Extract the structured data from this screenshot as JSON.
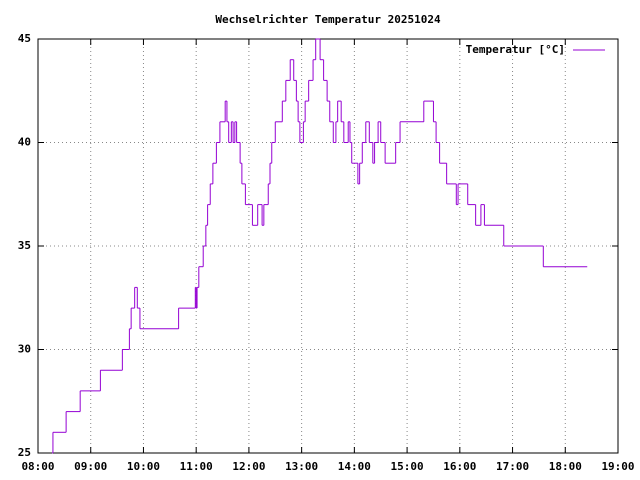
{
  "chart_data": {
    "type": "line",
    "title": "Wechselrichter Temperatur 20251024",
    "x": [
      "08:16",
      "08:17",
      "08:32",
      "08:48",
      "09:11",
      "09:36",
      "09:44",
      "09:46",
      "09:50",
      "09:53",
      "09:56",
      "10:40",
      "10:59",
      "11:00",
      "11:01",
      "11:03",
      "11:08",
      "11:11",
      "11:13",
      "11:16",
      "11:19",
      "11:23",
      "11:27",
      "11:33",
      "11:35",
      "11:37",
      "11:40",
      "11:42",
      "11:44",
      "11:46",
      "11:50",
      "11:52",
      "11:56",
      "12:04",
      "12:10",
      "12:15",
      "12:17",
      "12:22",
      "12:24",
      "12:26",
      "12:30",
      "12:38",
      "12:42",
      "12:47",
      "12:51",
      "12:54",
      "12:56",
      "12:58",
      "13:02",
      "13:04",
      "13:08",
      "13:13",
      "13:16",
      "13:21",
      "13:25",
      "13:29",
      "13:32",
      "13:36",
      "13:39",
      "13:41",
      "13:45",
      "13:48",
      "13:53",
      "13:55",
      "13:57",
      "14:04",
      "14:06",
      "14:09",
      "14:13",
      "14:17",
      "14:21",
      "14:23",
      "14:27",
      "14:30",
      "14:35",
      "14:47",
      "14:52",
      "15:19",
      "15:30",
      "15:33",
      "15:37",
      "15:45",
      "15:56",
      "15:58",
      "16:09",
      "16:18",
      "16:24",
      "16:28",
      "16:50",
      "17:35",
      "18:25"
    ],
    "series": [
      {
        "name": "Temperatur [°C]",
        "color": "#9400d3",
        "values": [
          25,
          26,
          27,
          28,
          29,
          30,
          31,
          32,
          33,
          32,
          31,
          32,
          33,
          32,
          33,
          34,
          35,
          36,
          37,
          38,
          39,
          40,
          41,
          42,
          41,
          40,
          41,
          40,
          41,
          40,
          39,
          38,
          37,
          36,
          37,
          36,
          37,
          38,
          39,
          40,
          41,
          42,
          43,
          44,
          43,
          42,
          41,
          40,
          41,
          42,
          43,
          44,
          45,
          44,
          43,
          42,
          41,
          40,
          41,
          42,
          41,
          40,
          41,
          40,
          39,
          38,
          39,
          40,
          41,
          40,
          39,
          40,
          41,
          40,
          39,
          40,
          41,
          42,
          41,
          40,
          39,
          38,
          37,
          38,
          37,
          36,
          37,
          36,
          35,
          34,
          34
        ]
      }
    ],
    "xlim": [
      "08:00",
      "19:00"
    ],
    "xticks": [
      "08:00",
      "09:00",
      "10:00",
      "11:00",
      "12:00",
      "13:00",
      "14:00",
      "15:00",
      "16:00",
      "17:00",
      "18:00",
      "19:00"
    ],
    "ylim": [
      25,
      45
    ],
    "yticks": [
      25,
      30,
      35,
      40,
      45
    ],
    "grid": true,
    "legend": "top-right",
    "step": true
  }
}
